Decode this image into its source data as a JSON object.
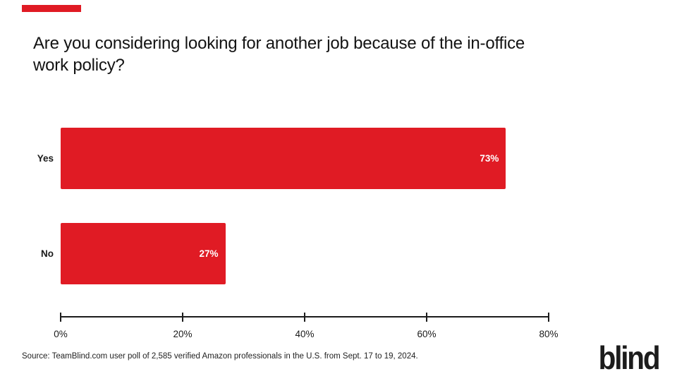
{
  "title": "Are you considering looking for another job because of the in-office work policy?",
  "colors": {
    "bar_red": "#E01B24",
    "text_dark": "#131313",
    "axis_black": "#1C1C1C"
  },
  "chart_data": {
    "type": "bar",
    "orientation": "horizontal",
    "title": "Are you considering looking for another job because of the in-office work policy?",
    "categories": [
      "Yes",
      "No"
    ],
    "values": [
      73,
      27
    ],
    "value_labels": [
      "73%",
      "27%"
    ],
    "xlabel": "",
    "ylabel": "",
    "xlim": [
      0,
      80
    ],
    "x_tick_values": [
      0,
      20,
      40,
      60,
      80
    ],
    "x_tick_labels": [
      "0%",
      "20%",
      "40%",
      "60%",
      "80%"
    ],
    "bar_color": "#E01B24",
    "value_label_color": "#FFFFFF",
    "grid": false,
    "legend": false
  },
  "footer": {
    "source": "Source: TeamBlind.com user poll of 2,585 verified Amazon professionals in the U.S. from Sept. 17 to 19, 2024.",
    "logo_text": "blind"
  }
}
